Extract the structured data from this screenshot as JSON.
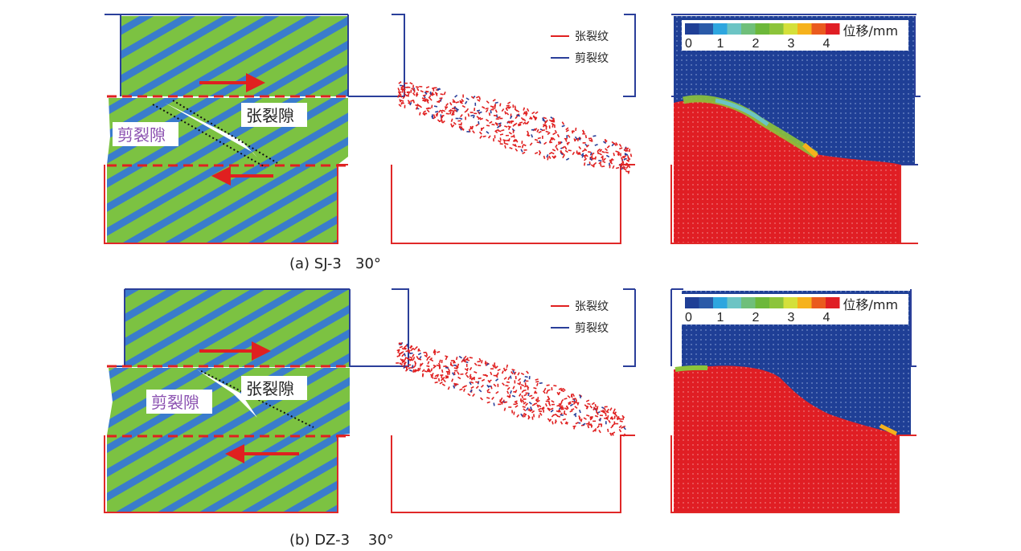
{
  "rows": [
    {
      "caption": "(a) SJ-3   30°",
      "tension_gap_label": "张裂隙",
      "shear_gap_label": "剪裂隙",
      "legend": {
        "tension": "张裂纹",
        "shear": "剪裂纹"
      },
      "colorbar": {
        "title": "位移/mm",
        "ticks": [
          "0",
          "1",
          "2",
          "3",
          "4"
        ]
      }
    },
    {
      "caption": "(b) DZ-3    30°",
      "tension_gap_label": "张裂隙",
      "shear_gap_label": "剪裂隙",
      "legend": {
        "tension": "张裂纹",
        "shear": "剪裂纹"
      },
      "colorbar": {
        "title": "位移/mm",
        "ticks": [
          "0",
          "1",
          "2",
          "3",
          "4"
        ]
      }
    }
  ],
  "colors": {
    "tension": "#e02020",
    "shear": "#2a3f9a",
    "frame_top": "#2b3f9a",
    "frame_bottom": "#e02828",
    "green": "#7cc242",
    "blue_stripe": "#3a7ccc",
    "gap_label": "#8a4fb0",
    "colorbar": [
      "#1f3f96",
      "#2a5aa8",
      "#2ea6df",
      "#6cc4c4",
      "#6fbf7a",
      "#6cb83a",
      "#8cc43a",
      "#d4e03a",
      "#f6b21c",
      "#ea5a1e",
      "#e01e24"
    ]
  }
}
